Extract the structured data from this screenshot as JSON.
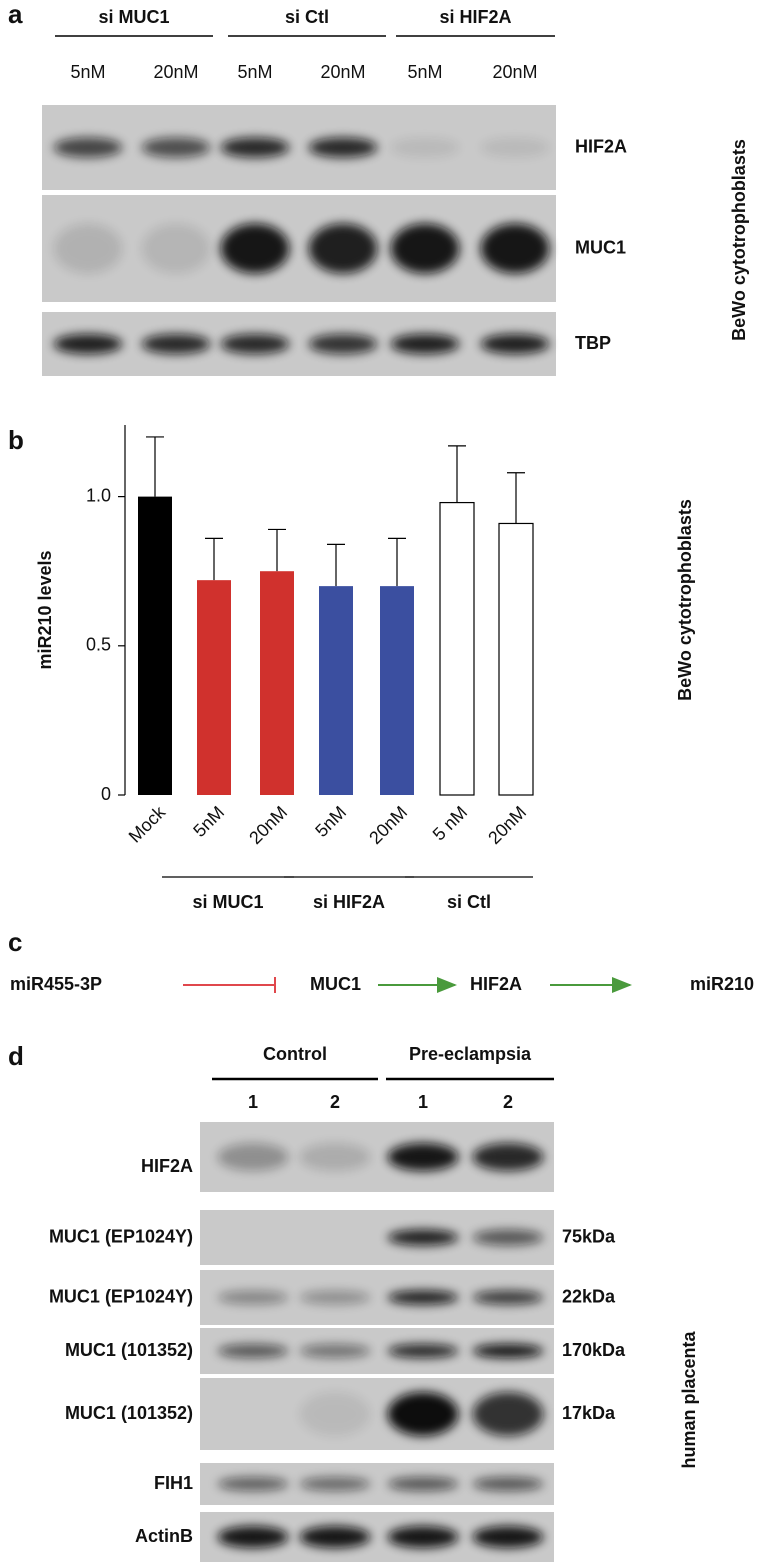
{
  "panel_a": {
    "label": "a",
    "groups": [
      "si MUC1",
      "si Ctl",
      "si HIF2A"
    ],
    "lanes": [
      "5nM",
      "20nM",
      "5nM",
      "20nM",
      "5nM",
      "20nM"
    ],
    "blots": [
      "HIF2A",
      "MUC1",
      "TBP"
    ],
    "side_label": "BeWo cytotrophoblasts"
  },
  "chart_data": {
    "type": "bar",
    "label": "b",
    "ylabel": "miR210 levels",
    "side_label": "BeWo cytotrophoblasts",
    "categories": [
      "Mock",
      "5nM",
      "20nM",
      "5nM",
      "20nM",
      "5 nM",
      "20nM"
    ],
    "values": [
      1.0,
      0.72,
      0.75,
      0.7,
      0.7,
      0.98,
      0.91
    ],
    "errors": [
      0.2,
      0.14,
      0.14,
      0.14,
      0.16,
      0.19,
      0.17
    ],
    "colors": [
      "#000000",
      "#d0312d",
      "#d0312d",
      "#3b4fa0",
      "#3b4fa0",
      "#ffffff",
      "#ffffff"
    ],
    "groups": [
      "si MUC1",
      "si HIF2A",
      "si Ctl"
    ],
    "ylim": [
      0,
      1.24
    ],
    "yticks": [
      0,
      0.5,
      {
        "value": 1,
        "label": "1.0"
      }
    ]
  },
  "panel_c": {
    "label": "c",
    "nodes": [
      "miR455-3P",
      "MUC1",
      "HIF2A",
      "miR210"
    ]
  },
  "panel_d": {
    "label": "d",
    "groups": [
      "Control",
      "Pre-eclampsia"
    ],
    "lanes": [
      "1",
      "2",
      "1",
      "2"
    ],
    "blots": [
      {
        "name": "HIF2A"
      },
      {
        "name": "MUC1 (EP1024Y)",
        "size": "75kDa"
      },
      {
        "name": "MUC1 (EP1024Y)",
        "size": "22kDa"
      },
      {
        "name": "MUC1 (101352)",
        "size": "170kDa"
      },
      {
        "name": "MUC1 (101352)",
        "size": "17kDa"
      },
      {
        "name": "FIH1"
      },
      {
        "name": "ActinB"
      }
    ],
    "side_label": "human placenta"
  }
}
